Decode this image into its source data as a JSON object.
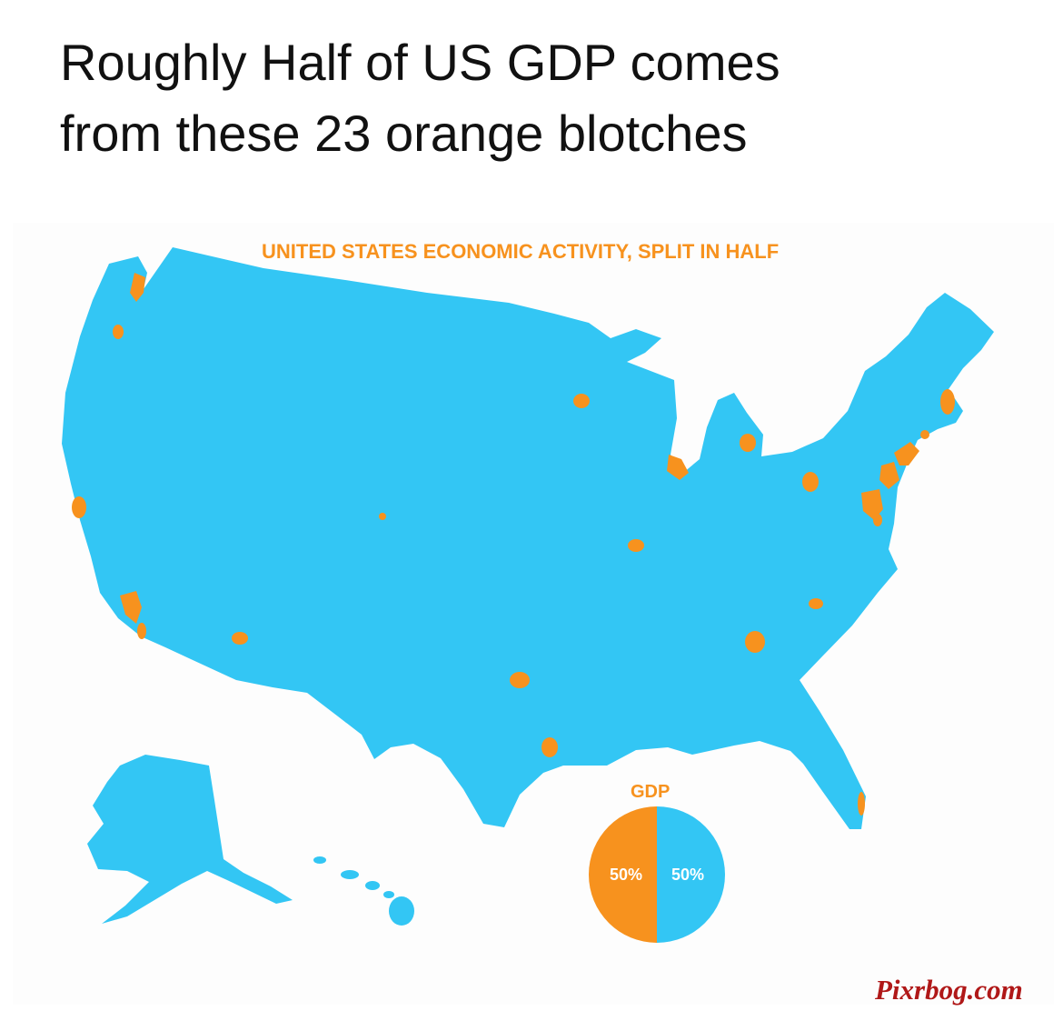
{
  "headline": {
    "line1": "Roughly Half of US GDP comes",
    "line2": "from these 23 orange blotches"
  },
  "map": {
    "title": "UNITED STATES ECONOMIC ACTIVITY, SPLIT IN HALF",
    "land_color": "#33c6f4",
    "metro_color": "#f7921e"
  },
  "chart_data": {
    "type": "pie",
    "title": "GDP",
    "slices": [
      {
        "label": "50%",
        "value": 50,
        "color": "#f7921e"
      },
      {
        "label": "50%",
        "value": 50,
        "color": "#33c6f4"
      }
    ]
  },
  "watermark": {
    "text": "Pixrbog.com"
  }
}
